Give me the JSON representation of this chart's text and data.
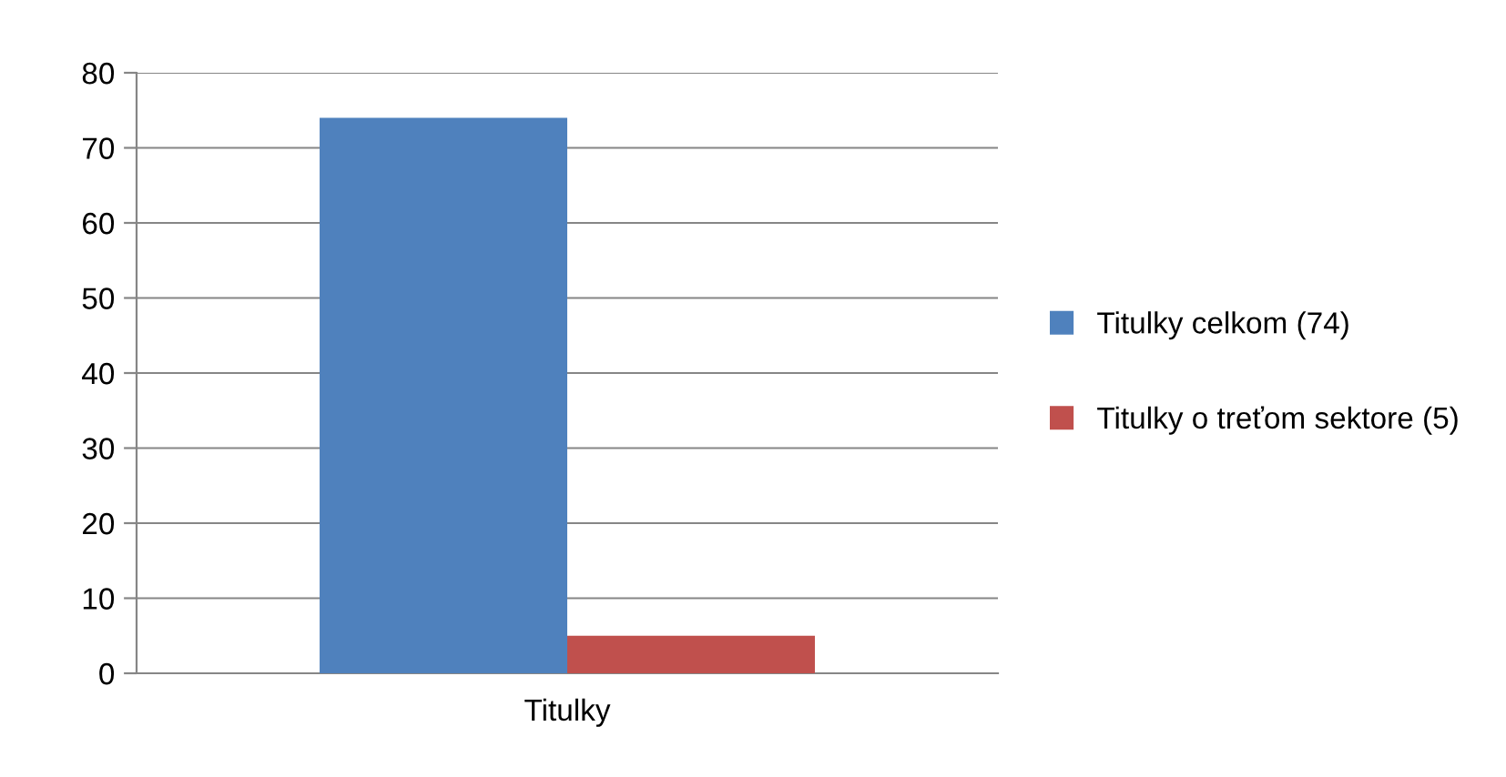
{
  "chart_data": {
    "type": "bar",
    "categories": [
      "Titulky"
    ],
    "series": [
      {
        "name": "Titulky celkom (74)",
        "color": "#4f81bd",
        "values": [
          74
        ]
      },
      {
        "name": "Titulky o treťom sektore (5)",
        "color": "#c0504d",
        "values": [
          5
        ]
      }
    ],
    "ylim": [
      0,
      80
    ],
    "yticks": [
      0,
      10,
      20,
      30,
      40,
      50,
      60,
      70,
      80
    ],
    "grid": "y",
    "legend": "right"
  }
}
